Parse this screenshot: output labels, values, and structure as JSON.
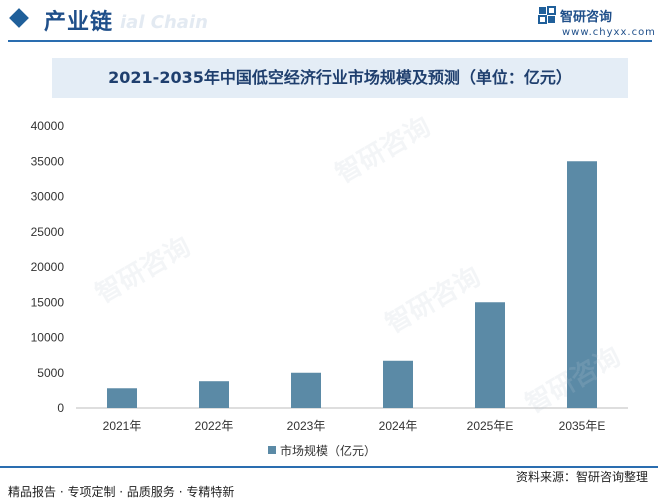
{
  "header": {
    "title": "产业链",
    "ghost_text": "ial Chain"
  },
  "brand": {
    "name": "智研咨询",
    "url": "www.chyxx.com"
  },
  "watermark_text": "智研咨询",
  "colors": {
    "bar": "#5b8aa6",
    "accent": "#1f5f9a",
    "title_band": "#e4edf6"
  },
  "chart_data": {
    "type": "bar",
    "title": "2021-2035年中国低空经济行业市场规模及预测（单位：亿元）",
    "categories": [
      "2021年",
      "2022年",
      "2023年",
      "2024年",
      "2025年E",
      "2035年E"
    ],
    "series": [
      {
        "name": "市场规模（亿元）",
        "values": [
          2800,
          3800,
          5000,
          6700,
          15000,
          35000
        ]
      }
    ],
    "yticks": [
      0,
      5000,
      10000,
      15000,
      20000,
      25000,
      30000,
      35000,
      40000
    ],
    "ylim": [
      0,
      40000
    ],
    "grid": false,
    "legend_position": "bottom"
  },
  "footer": {
    "left": "精品报告 · 专项定制 · 品质服务 · 专精特新",
    "right": "资料来源：智研咨询整理"
  }
}
